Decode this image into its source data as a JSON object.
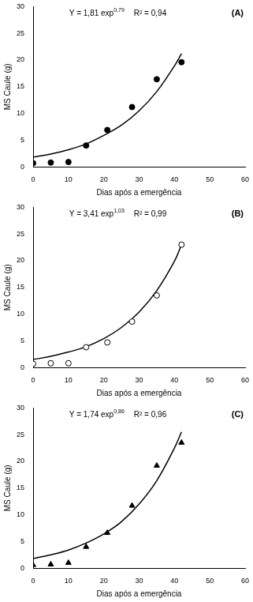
{
  "chart_data": [
    {
      "type": "scatter",
      "title": "(A)",
      "annotations": [
        {
          "text": "Y = 1,81 exp",
          "superscript": "0,79"
        },
        {
          "text": "R² = 0,94"
        }
      ],
      "x_label": "Dias após a emergência",
      "y_label": "MS Caule (g)",
      "xlim": [
        0,
        60
      ],
      "xticks": [
        0,
        10,
        20,
        30,
        40,
        50,
        60
      ],
      "ylim": [
        0,
        30
      ],
      "yticks": [
        0,
        5,
        10,
        15,
        20,
        25,
        30
      ],
      "grid": false,
      "series": [
        {
          "type": "scatter",
          "marker": "circle",
          "color": "#000000",
          "x": [
            0,
            5,
            10,
            15,
            21,
            28,
            35,
            42
          ],
          "values": [
            0.7,
            0.8,
            0.9,
            4.0,
            6.9,
            11.2,
            16.4,
            19.6
          ]
        },
        {
          "type": "line",
          "marker": "none",
          "line_style": "solid",
          "color": "#000000",
          "x": [
            0,
            5,
            10,
            15,
            20,
            25,
            30,
            35,
            40,
            42
          ],
          "values": [
            1.8,
            2.4,
            3.2,
            4.3,
            5.9,
            7.8,
            10.5,
            14.1,
            18.9,
            21.2
          ]
        }
      ]
    },
    {
      "type": "scatter",
      "title": "(B)",
      "annotations": [
        {
          "text": "Y = 3,41 exp",
          "superscript": "1,03"
        },
        {
          "text": "R² = 0,99"
        }
      ],
      "x_label": "Dias após a emergência",
      "y_label": "MS Caule (g)",
      "xlim": [
        0,
        60
      ],
      "xticks": [
        0,
        10,
        20,
        30,
        40,
        50,
        60
      ],
      "ylim": [
        0,
        30
      ],
      "yticks": [
        0,
        5,
        10,
        15,
        20,
        25,
        30
      ],
      "grid": false,
      "series": [
        {
          "type": "scatter",
          "marker": "open_circle",
          "color": "#000000",
          "x": [
            0,
            5,
            10,
            15,
            21,
            28,
            35,
            42
          ],
          "values": [
            0.7,
            0.8,
            0.8,
            3.8,
            4.7,
            8.6,
            13.5,
            23.0
          ]
        },
        {
          "type": "line",
          "marker": "none",
          "line_style": "solid",
          "color": "#000000",
          "x": [
            0,
            5,
            10,
            15,
            20,
            25,
            30,
            35,
            40,
            42
          ],
          "values": [
            1.5,
            2.1,
            2.9,
            3.9,
            5.4,
            7.5,
            10.4,
            14.4,
            19.9,
            23.0
          ]
        }
      ]
    },
    {
      "type": "scatter",
      "title": "(C)",
      "annotations": [
        {
          "text": "Y = 1,74 exp",
          "superscript": "0,86"
        },
        {
          "text": "R² = 0,96"
        }
      ],
      "x_label": "Dias após a emergência",
      "y_label": "MS Caule (g)",
      "xlim": [
        0,
        60
      ],
      "xticks": [
        0,
        10,
        20,
        30,
        40,
        50,
        60
      ],
      "ylim": [
        0,
        30
      ],
      "yticks": [
        0,
        5,
        10,
        15,
        20,
        25,
        30
      ],
      "grid": false,
      "series": [
        {
          "type": "scatter",
          "marker": "triangle",
          "color": "#000000",
          "x": [
            0,
            5,
            10,
            15,
            21,
            28,
            35,
            42
          ],
          "values": [
            0.6,
            0.7,
            1.0,
            4.0,
            6.6,
            11.7,
            19.2,
            23.5
          ]
        },
        {
          "type": "line",
          "marker": "none",
          "line_style": "solid",
          "color": "#000000",
          "x": [
            0,
            5,
            10,
            15,
            20,
            25,
            30,
            35,
            40,
            42
          ],
          "values": [
            1.8,
            2.5,
            3.4,
            4.7,
            6.4,
            8.7,
            12.0,
            16.4,
            22.5,
            25.5
          ]
        }
      ]
    }
  ]
}
